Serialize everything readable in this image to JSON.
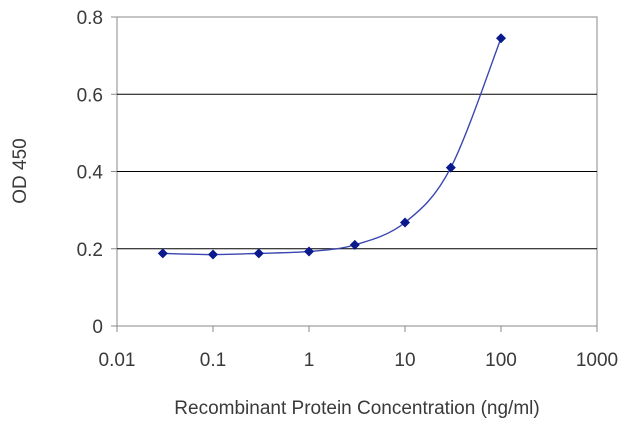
{
  "chart_data": {
    "type": "scatter",
    "title": "",
    "xlabel": "Recombinant Protein Concentration (ng/ml)",
    "ylabel": "OD 450",
    "x_scale": "log",
    "xlim": [
      0.01,
      1000
    ],
    "ylim": [
      0,
      0.8
    ],
    "x_ticks": [
      "0.01",
      "0.1",
      "1",
      "10",
      "100",
      "1000"
    ],
    "y_ticks": [
      "0",
      "0.2",
      "0.4",
      "0.6",
      "0.8"
    ],
    "grid": "horizontal",
    "legend": "none",
    "series": [
      {
        "x": [
          0.03,
          0.1,
          0.3,
          1,
          3,
          10,
          30,
          100
        ],
        "y": [
          0.188,
          0.185,
          0.188,
          0.193,
          0.21,
          0.268,
          0.41,
          0.745
        ],
        "fit_curve": true
      }
    ],
    "colors": {
      "marker": "#0a1a8c",
      "curve": "#3a46b0",
      "grid": "#000000",
      "frame": "#8a8a8a"
    }
  }
}
